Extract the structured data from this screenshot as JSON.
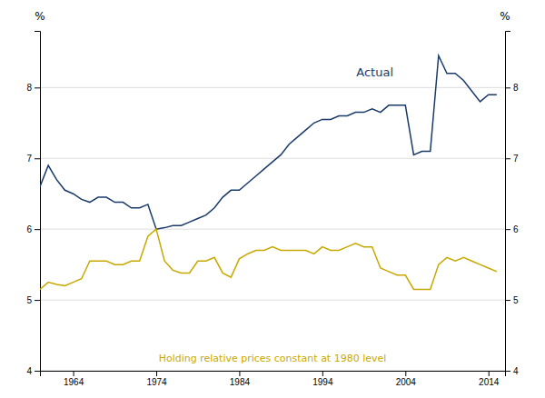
{
  "chart_data": {
    "type": "line",
    "ylabel": "%",
    "y2label": "%",
    "annotations": [
      "Actual",
      "Holding relative prices constant at 1980 level"
    ],
    "xlim": [
      1960,
      2016
    ],
    "ylim": [
      4,
      8.8
    ],
    "yticks": [
      4,
      5,
      6,
      7,
      8
    ],
    "y2lim": [
      4,
      8.8
    ],
    "y2ticks": [
      4,
      5,
      6,
      7,
      8
    ],
    "xticks": [
      1964,
      1974,
      1984,
      1994,
      2004,
      2014
    ],
    "grid": true,
    "x": [
      1960,
      1961,
      1962,
      1963,
      1964,
      1965,
      1966,
      1967,
      1968,
      1969,
      1970,
      1971,
      1972,
      1973,
      1974,
      1975,
      1976,
      1977,
      1978,
      1979,
      1980,
      1981,
      1982,
      1983,
      1984,
      1985,
      1986,
      1987,
      1988,
      1989,
      1990,
      1991,
      1992,
      1993,
      1994,
      1995,
      1996,
      1997,
      1998,
      1999,
      2000,
      2001,
      2002,
      2003,
      2004,
      2005,
      2006,
      2007,
      2008,
      2009,
      2010,
      2011,
      2012,
      2013,
      2014,
      2015
    ],
    "series": [
      {
        "color": "#1a3a6b",
        "values": [
          6.6,
          6.9,
          6.7,
          6.55,
          6.5,
          6.42,
          6.38,
          6.45,
          6.45,
          6.38,
          6.38,
          6.3,
          6.3,
          6.35,
          6.0,
          6.02,
          6.05,
          6.05,
          6.1,
          6.15,
          6.2,
          6.3,
          6.45,
          6.55,
          6.55,
          6.65,
          6.75,
          6.85,
          6.95,
          7.05,
          7.2,
          7.3,
          7.4,
          7.5,
          7.55,
          7.55,
          7.6,
          7.6,
          7.65,
          7.65,
          7.7,
          7.65,
          7.75,
          7.75,
          7.75,
          7.05,
          7.1,
          7.1,
          8.45,
          8.2,
          8.2,
          8.1,
          7.95,
          7.8,
          7.9,
          7.9
        ]
      },
      {
        "color": "#c8a800",
        "values": [
          5.15,
          5.25,
          5.22,
          5.2,
          5.25,
          5.3,
          5.55,
          5.55,
          5.55,
          5.5,
          5.5,
          5.55,
          5.55,
          5.9,
          6.0,
          5.55,
          5.42,
          5.38,
          5.38,
          5.55,
          5.55,
          5.6,
          5.38,
          5.32,
          5.58,
          5.65,
          5.7,
          5.7,
          5.75,
          5.7,
          5.7,
          5.7,
          5.7,
          5.65,
          5.75,
          5.7,
          5.7,
          5.75,
          5.8,
          5.75,
          5.75,
          5.45,
          5.4,
          5.35,
          5.35,
          5.15,
          5.15,
          5.15,
          5.5,
          5.6,
          5.55,
          5.6,
          5.55,
          5.5,
          5.45,
          5.4
        ]
      }
    ]
  }
}
